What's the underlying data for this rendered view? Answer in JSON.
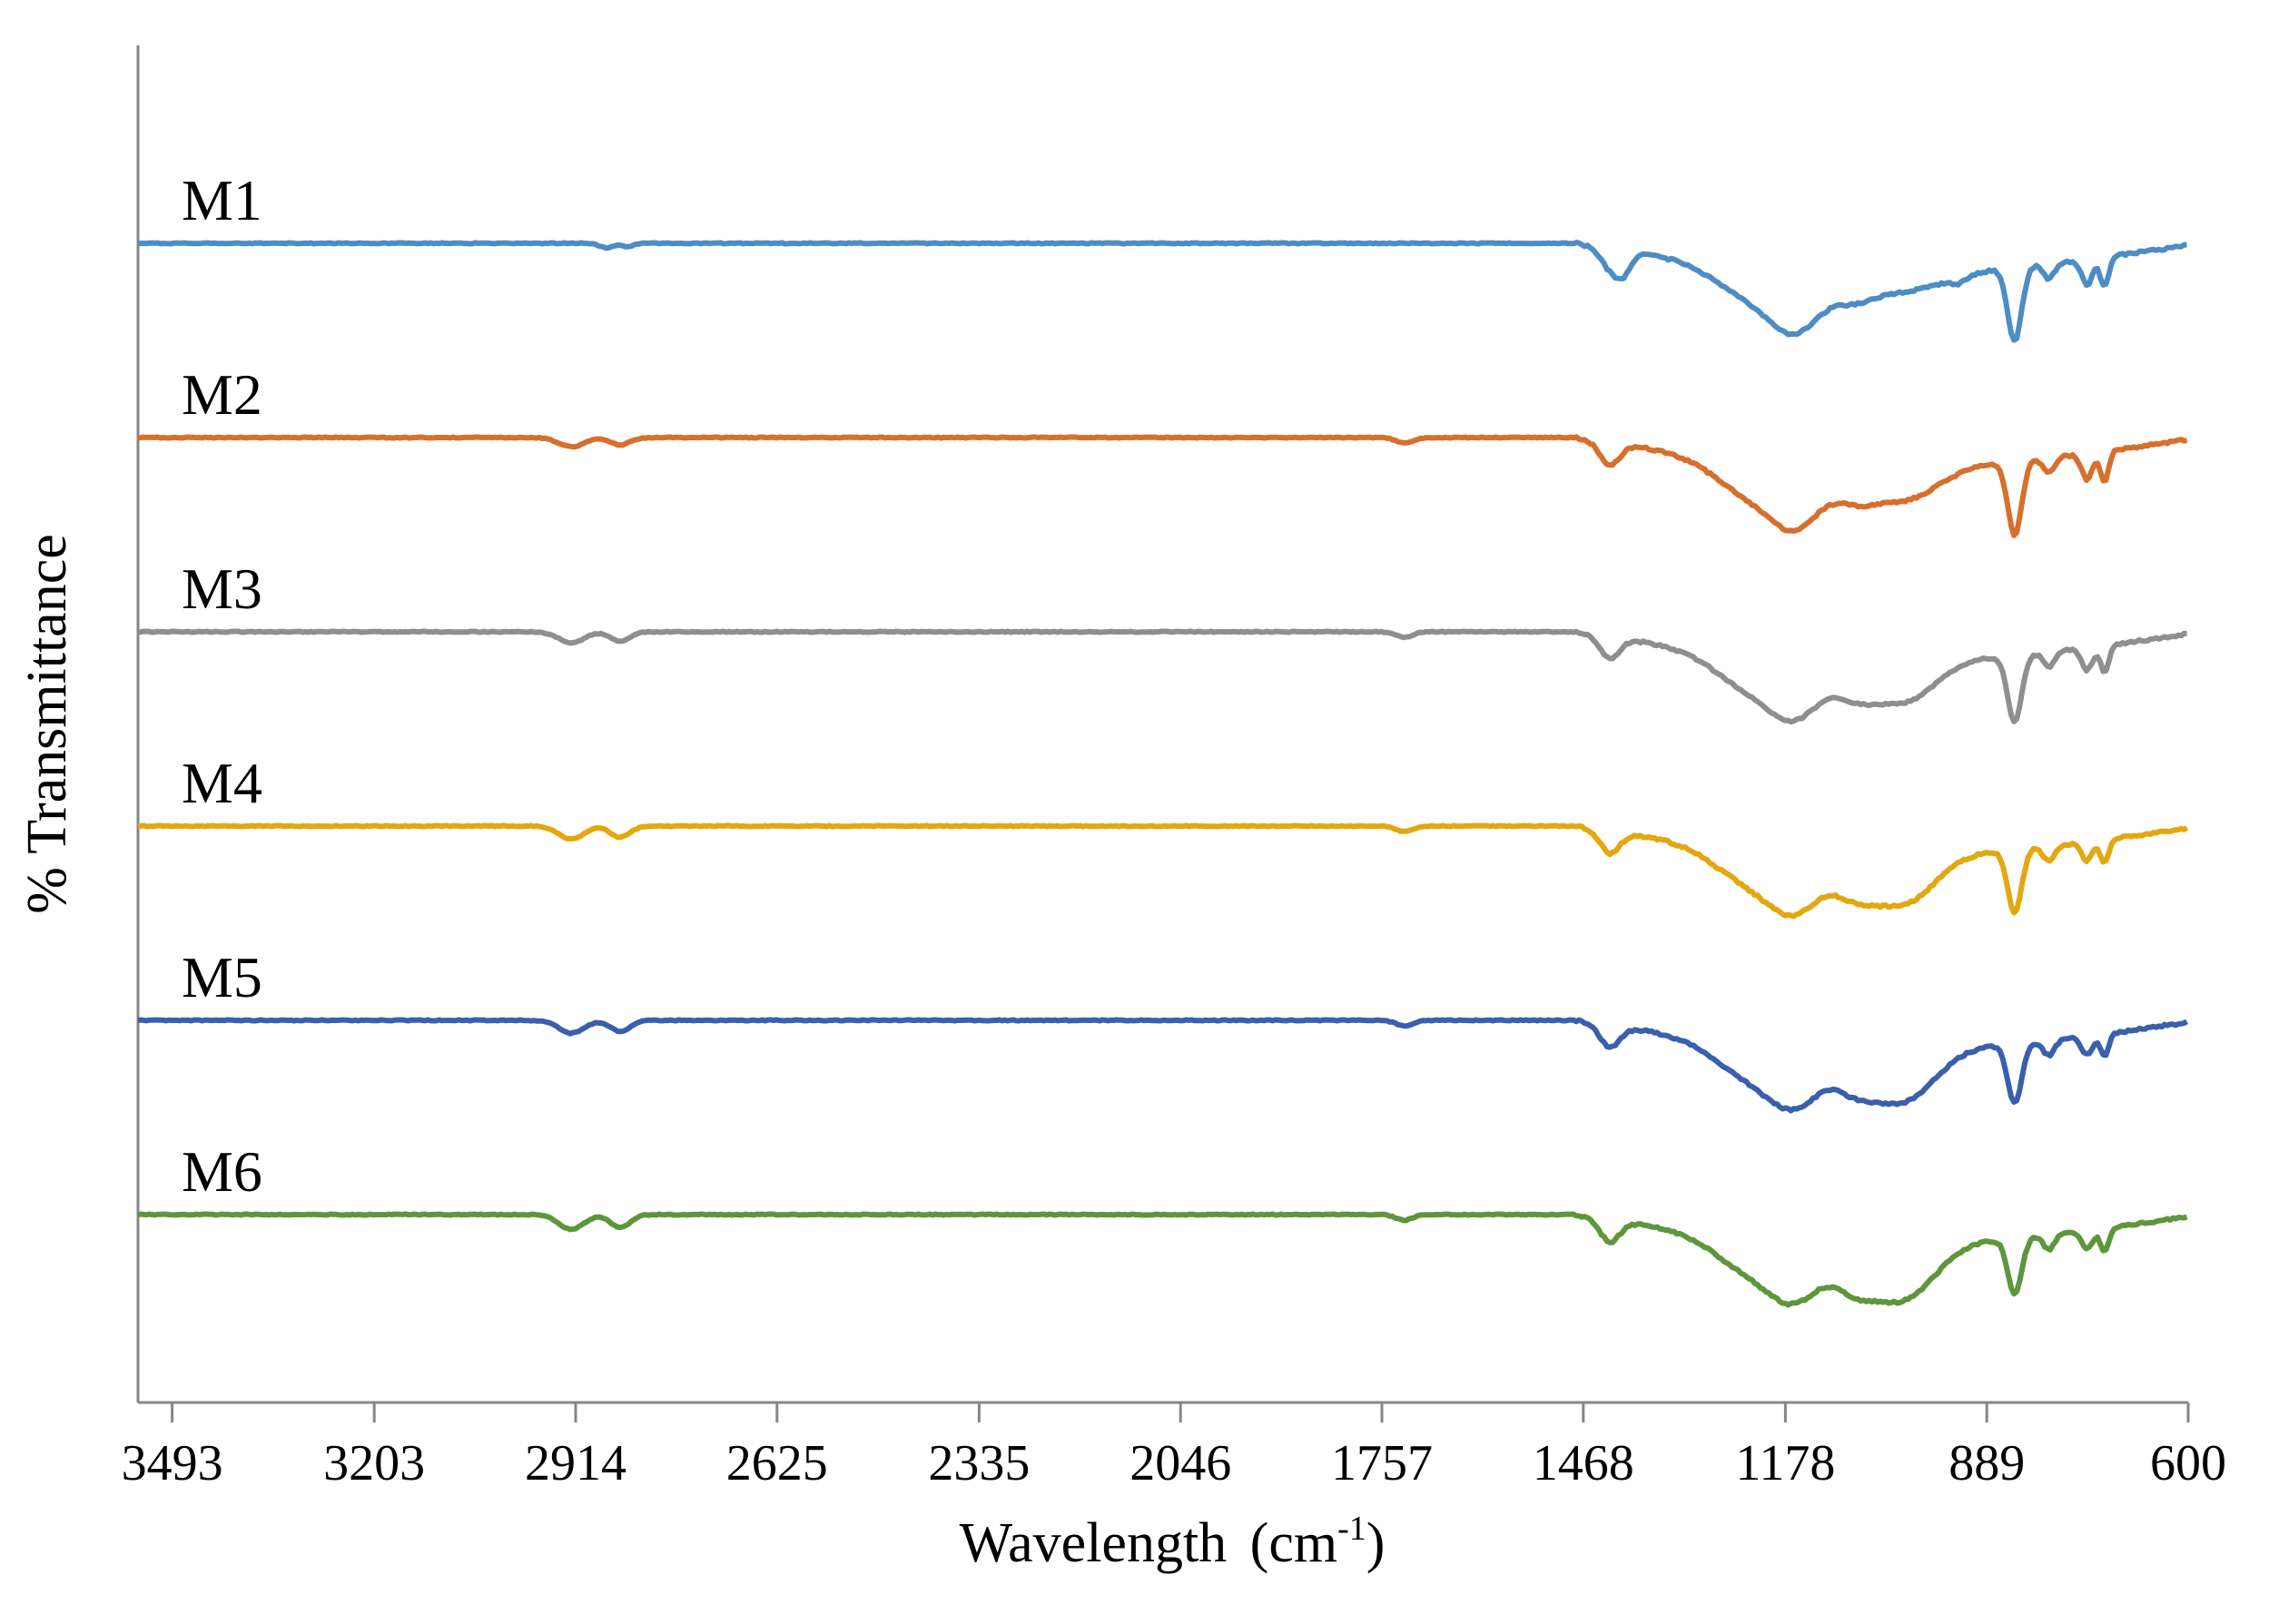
{
  "chart_data": {
    "type": "line",
    "title": "",
    "xlabel": "Wavelength",
    "xlabel_unit_base": "(cm",
    "xlabel_unit_sup": "-1",
    "xlabel_unit_close": ")",
    "ylabel": "% Transmittance",
    "x_reversed": true,
    "xlim": [
      3542,
      600
    ],
    "x_ticks": [
      3493,
      3203,
      2914,
      2625,
      2335,
      2046,
      1757,
      1468,
      1178,
      889,
      600
    ],
    "x_tick_labels": [
      "3493",
      "3203",
      "2914",
      "2625",
      "2335",
      "2046",
      "1757",
      "1468",
      "1178",
      "889",
      "600"
    ],
    "y_axis_values_shown": false,
    "grid": false,
    "legend": "inline labels above each trace",
    "series": [
      {
        "name": "M1",
        "color": "#4e8cc4",
        "baseline": 6.0,
        "dips": [
          [
            2870,
            0.12,
            10
          ],
          [
            2840,
            0.1,
            8
          ],
          [
            1430,
            0.5,
            14
          ],
          [
            1410,
            0.55,
            12
          ],
          [
            1220,
            0.9,
            55
          ],
          [
            1160,
            1.2,
            35
          ],
          [
            1080,
            0.5,
            30
          ],
          [
            1010,
            0.5,
            60
          ],
          [
            930,
            0.15,
            10
          ],
          [
            849,
            2.0,
            10
          ],
          [
            800,
            0.4,
            8
          ],
          [
            745,
            0.7,
            8
          ],
          [
            720,
            0.8,
            6
          ]
        ]
      },
      {
        "name": "M2",
        "color": "#d76f2d",
        "baseline": 5.0,
        "dips": [
          [
            2920,
            0.25,
            18
          ],
          [
            2850,
            0.2,
            14
          ],
          [
            1725,
            0.15,
            12
          ],
          [
            1430,
            0.6,
            14
          ],
          [
            1220,
            1.0,
            55
          ],
          [
            1160,
            1.2,
            35
          ],
          [
            1080,
            0.6,
            30
          ],
          [
            1010,
            0.9,
            50
          ],
          [
            849,
            2.0,
            10
          ],
          [
            800,
            0.4,
            8
          ],
          [
            745,
            0.7,
            8
          ],
          [
            720,
            0.8,
            6
          ]
        ]
      },
      {
        "name": "M3",
        "color": "#8f8f8f",
        "baseline": 4.0,
        "dips": [
          [
            2920,
            0.3,
            18
          ],
          [
            2850,
            0.25,
            14
          ],
          [
            1725,
            0.15,
            12
          ],
          [
            1430,
            0.6,
            14
          ],
          [
            1220,
            1.0,
            55
          ],
          [
            1160,
            1.1,
            35
          ],
          [
            1080,
            0.7,
            30
          ],
          [
            1010,
            1.1,
            45
          ],
          [
            849,
            1.8,
            10
          ],
          [
            800,
            0.4,
            8
          ],
          [
            745,
            0.6,
            8
          ],
          [
            720,
            0.7,
            6
          ]
        ]
      },
      {
        "name": "M4",
        "color": "#e3a70f",
        "baseline": 3.0,
        "dips": [
          [
            2920,
            0.35,
            18
          ],
          [
            2850,
            0.3,
            14
          ],
          [
            1725,
            0.15,
            12
          ],
          [
            1430,
            0.6,
            14
          ],
          [
            1220,
            1.0,
            55
          ],
          [
            1160,
            1.1,
            35
          ],
          [
            1080,
            0.8,
            30
          ],
          [
            1010,
            1.3,
            45
          ],
          [
            849,
            1.7,
            10
          ],
          [
            800,
            0.4,
            8
          ],
          [
            745,
            0.5,
            8
          ],
          [
            720,
            0.6,
            6
          ]
        ]
      },
      {
        "name": "M5",
        "color": "#3a5fac",
        "baseline": 2.0,
        "dips": [
          [
            2920,
            0.35,
            18
          ],
          [
            2850,
            0.3,
            14
          ],
          [
            1725,
            0.15,
            12
          ],
          [
            1430,
            0.6,
            14
          ],
          [
            1220,
            1.0,
            55
          ],
          [
            1160,
            1.1,
            35
          ],
          [
            1080,
            0.8,
            30
          ],
          [
            1010,
            1.4,
            45
          ],
          [
            849,
            1.6,
            10
          ],
          [
            800,
            0.4,
            8
          ],
          [
            745,
            0.5,
            8
          ],
          [
            720,
            0.6,
            6
          ]
        ]
      },
      {
        "name": "M6",
        "color": "#5e963c",
        "baseline": 1.0,
        "dips": [
          [
            2920,
            0.4,
            18
          ],
          [
            2850,
            0.35,
            14
          ],
          [
            1725,
            0.15,
            12
          ],
          [
            1430,
            0.6,
            14
          ],
          [
            1220,
            1.0,
            55
          ],
          [
            1160,
            1.1,
            35
          ],
          [
            1080,
            0.9,
            30
          ],
          [
            1010,
            1.5,
            45
          ],
          [
            849,
            1.5,
            10
          ],
          [
            800,
            0.4,
            8
          ],
          [
            745,
            0.5,
            8
          ],
          [
            720,
            0.6,
            6
          ]
        ]
      }
    ]
  }
}
